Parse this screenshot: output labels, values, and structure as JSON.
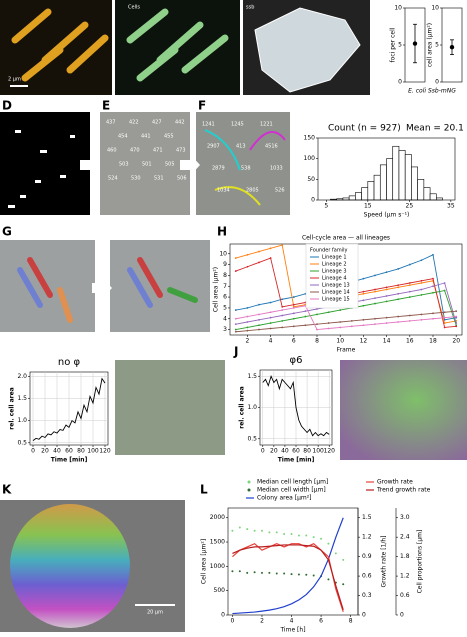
{
  "panel_letters": [
    "D",
    "E",
    "F",
    "G",
    "H",
    "J",
    "K",
    "L"
  ],
  "images": {
    "a_scale": "2 μm",
    "b_label": "Cells",
    "c_label": "ssb",
    "e_ids": [
      "437",
      "422",
      "427",
      "442",
      "454",
      "441",
      "455",
      "460",
      "470",
      "471",
      "473",
      "503",
      "501",
      "505",
      "524",
      "530",
      "531",
      "506"
    ],
    "f_ids": [
      "1241",
      "1245",
      "1221",
      "2907",
      "413",
      "4516",
      "2879",
      "538",
      "1033",
      "1034",
      "2805",
      "526"
    ],
    "k_scale": "20 μm"
  },
  "chart_data": [
    {
      "type": "errorbar",
      "ylabel": "foci per cell",
      "xlabel": "E. coli Ssb-mNG",
      "ylim": [
        0,
        10
      ],
      "yticks": [
        0,
        5,
        10
      ],
      "values": [
        5.2
      ],
      "errors": [
        2.6
      ],
      "color": "#000000"
    },
    {
      "type": "errorbar",
      "ylabel": "cell area (μm²)",
      "ylim": [
        0,
        10
      ],
      "yticks": [
        0,
        5,
        10
      ],
      "values": [
        4.7
      ],
      "errors": [
        1.0
      ],
      "color": "#000000"
    },
    {
      "type": "histogram",
      "title": "Count (n = 927)",
      "subtitle": "Mean = 20.1",
      "xlabel": "Speed (μm s⁻¹)",
      "bins": [
        6,
        7.5,
        9,
        10.5,
        12,
        13.5,
        15,
        16.5,
        18,
        19.5,
        21,
        22.5,
        24,
        25.5,
        27,
        28.5,
        30,
        31.5,
        33
      ],
      "values": [
        2,
        3,
        5,
        10,
        18,
        30,
        45,
        60,
        85,
        100,
        130,
        120,
        110,
        80,
        50,
        30,
        15,
        5
      ],
      "xlim": [
        3,
        36
      ],
      "xticks": [
        5,
        15,
        25,
        35
      ],
      "ylim": [
        0,
        150
      ],
      "yticks": [
        0,
        50,
        100,
        150
      ],
      "color": "#ffffff"
    },
    {
      "type": "line",
      "title": "Cell-cycle area — all lineages",
      "xlabel": "Frame",
      "ylabel": "Cell area (μm²)",
      "legend_title": "Founder family",
      "x": [
        1,
        2,
        3,
        4,
        5,
        6,
        7,
        8,
        9,
        10,
        11,
        12,
        13,
        14,
        15,
        16,
        17,
        18,
        19,
        20
      ],
      "xlim": [
        0.5,
        20.5
      ],
      "xticks": [
        2,
        4,
        6,
        8,
        10,
        12,
        14,
        16,
        18,
        20
      ],
      "ylim": [
        2.5,
        10.9
      ],
      "yticks": [
        3,
        4,
        5,
        6,
        7,
        8,
        9,
        10
      ],
      "grid": false,
      "markers": true,
      "series": [
        {
          "name": "Lineage 1",
          "color": "#1f77b4",
          "values": [
            4.8,
            5.0,
            5.3,
            5.5,
            5.8,
            6.0,
            6.3,
            6.6,
            6.9,
            7.2,
            7.4,
            7.7,
            8.0,
            8.3,
            8.6,
            9.0,
            9.4,
            9.9,
            3.9,
            4.1
          ]
        },
        {
          "name": "Lineage 2",
          "color": "#ff7f0e",
          "values": [
            9.6,
            9.9,
            10.2,
            10.5,
            10.8,
            5.1,
            5.3,
            5.5,
            5.7,
            5.9,
            6.1,
            6.3,
            6.5,
            6.7,
            6.9,
            7.1,
            7.3,
            7.5,
            3.6,
            3.8
          ]
        },
        {
          "name": "Lineage 3",
          "color": "#2ca02c",
          "values": [
            3.0,
            3.2,
            3.4,
            3.6,
            3.8,
            4.0,
            4.2,
            4.4,
            4.6,
            4.8,
            5.0,
            5.2,
            5.4,
            5.6,
            5.8,
            6.0,
            6.2,
            6.4,
            6.6,
            3.4
          ]
        },
        {
          "name": "Lineage 4",
          "color": "#d62728",
          "values": [
            8.4,
            8.8,
            9.2,
            9.6,
            5.1,
            5.3,
            5.5,
            5.7,
            5.9,
            6.1,
            6.3,
            6.5,
            6.7,
            6.9,
            7.1,
            7.3,
            7.5,
            7.7,
            3.2,
            3.3
          ]
        },
        {
          "name": "Lineage 13",
          "color": "#9467bd",
          "values": [
            3.5,
            3.7,
            3.9,
            4.1,
            4.3,
            4.5,
            4.7,
            4.9,
            5.1,
            5.3,
            5.5,
            5.7,
            5.9,
            6.1,
            6.3,
            6.5,
            6.7,
            7.0,
            7.3,
            3.6
          ]
        },
        {
          "name": "Lineage 14",
          "color": "#8c564b",
          "values": [
            2.8,
            2.9,
            3.0,
            3.1,
            3.2,
            3.3,
            3.4,
            3.5,
            3.6,
            3.7,
            3.8,
            3.9,
            4.0,
            4.1,
            4.2,
            4.3,
            4.4,
            4.5,
            4.6,
            4.7
          ]
        },
        {
          "name": "Lineage 15",
          "color": "#e377c2",
          "values": [
            4.0,
            4.2,
            4.4,
            4.6,
            4.8,
            5.0,
            5.2,
            3.0,
            3.1,
            3.2,
            3.3,
            3.4,
            3.5,
            3.6,
            3.7,
            3.8,
            3.9,
            4.0,
            4.1,
            4.2
          ]
        }
      ]
    },
    {
      "type": "line",
      "title": "no φ",
      "xlabel": "Time [min]",
      "ylabel": "rel. cell area",
      "grid": true,
      "x": [
        0,
        5,
        10,
        15,
        20,
        25,
        30,
        35,
        40,
        45,
        50,
        55,
        60,
        65,
        70,
        75,
        80,
        85,
        90,
        95,
        100,
        105,
        110,
        115,
        120
      ],
      "xlim": [
        -5,
        125
      ],
      "xticks": [
        0,
        20,
        40,
        60,
        80,
        100,
        120
      ],
      "ylim": [
        0.45,
        2.1
      ],
      "yticks": [
        0.5,
        {
          "value": 1,
          "label": "1.0"
        },
        1.5,
        {
          "value": 2,
          "label": "2.0"
        }
      ],
      "series": [
        {
          "color": "#000000",
          "values": [
            0.55,
            0.6,
            0.58,
            0.65,
            0.62,
            0.7,
            0.68,
            0.75,
            0.72,
            0.8,
            0.78,
            0.9,
            0.85,
            1.0,
            0.95,
            1.2,
            1.05,
            1.35,
            1.2,
            1.55,
            1.4,
            1.75,
            1.6,
            1.95,
            1.85
          ]
        }
      ]
    },
    {
      "type": "line",
      "title": "φ6",
      "xlabel": "Time [min]",
      "ylabel": "rel. cell area",
      "grid": true,
      "x": [
        0,
        5,
        10,
        15,
        20,
        25,
        30,
        35,
        40,
        45,
        50,
        55,
        60,
        65,
        70,
        75,
        80,
        85,
        90,
        95,
        100,
        105,
        110,
        115,
        120
      ],
      "xlim": [
        -5,
        125
      ],
      "xticks": [
        0,
        20,
        40,
        60,
        80,
        100,
        120
      ],
      "ylim": [
        0.4,
        1.6
      ],
      "yticks": [
        0.5,
        {
          "value": 1,
          "label": "1.0"
        },
        1.5
      ],
      "series": [
        {
          "color": "#000000",
          "values": [
            1.4,
            1.45,
            1.35,
            1.5,
            1.4,
            1.45,
            1.3,
            1.45,
            1.4,
            1.35,
            1.3,
            1.4,
            1.0,
            0.8,
            0.7,
            0.65,
            0.6,
            0.65,
            0.55,
            0.6,
            0.55,
            0.58,
            0.55,
            0.6,
            0.57
          ]
        }
      ]
    },
    {
      "type": "multiaxis",
      "xlabel": "Time [h]",
      "ylabel": "Cell area [μm²]",
      "y2label": "Growth rate [1/h]",
      "y3label": "Cell proportions [μm]",
      "x": [
        0,
        0.5,
        1,
        1.5,
        2,
        2.5,
        3,
        3.5,
        4,
        4.5,
        5,
        5.5,
        6,
        6.5,
        7,
        7.5
      ],
      "xlim": [
        -0.3,
        8.5
      ],
      "xticks": [
        0,
        2,
        4,
        6,
        8
      ],
      "ylim": [
        0,
        2200
      ],
      "yticks": [
        0,
        500,
        1000,
        1500,
        2000
      ],
      "y2lim": [
        0,
        1.65
      ],
      "y2ticks": [
        0,
        0.3,
        0.6,
        0.9,
        1.2,
        1.5
      ],
      "y3lim": [
        0,
        3.3
      ],
      "y3ticks": [
        0,
        0.6,
        1.2,
        1.8,
        2.4,
        {
          "value": 3,
          "label": "3.0"
        }
      ],
      "series": [
        {
          "name": "Median cell length [μm]",
          "color": "#7fd37f",
          "style": "scatter",
          "axis": "y3",
          "values": [
            2.6,
            2.7,
            2.65,
            2.6,
            2.6,
            2.55,
            2.55,
            2.5,
            2.5,
            2.45,
            2.45,
            2.4,
            2.35,
            2.2,
            1.9,
            1.7
          ]
        },
        {
          "name": "Median cell width [μm]",
          "color": "#2e6b2e",
          "style": "scatter",
          "axis": "y3",
          "values": [
            1.35,
            1.35,
            1.3,
            1.32,
            1.3,
            1.3,
            1.28,
            1.28,
            1.26,
            1.25,
            1.24,
            1.22,
            1.2,
            1.1,
            1.0,
            0.95
          ]
        },
        {
          "name": "Colony area [μm²]",
          "color": "#1f3fcf",
          "style": "line",
          "values": [
            30,
            40,
            50,
            60,
            80,
            100,
            130,
            170,
            230,
            310,
            420,
            580,
            800,
            1150,
            1600,
            2000
          ]
        },
        {
          "name": "Growth rate",
          "color": "#e8413a",
          "style": "line",
          "axis": "y2",
          "values": [
            0.9,
            1.0,
            1.05,
            1.1,
            1.0,
            1.05,
            1.1,
            1.05,
            1.1,
            1.1,
            1.05,
            1.1,
            1.0,
            0.9,
            0.4,
            0.05
          ]
        },
        {
          "name": "Trend growth rate",
          "color": "#b81d1d",
          "style": "line",
          "axis": "y2",
          "values": [
            0.95,
            1.0,
            1.03,
            1.05,
            1.05,
            1.06,
            1.07,
            1.08,
            1.08,
            1.08,
            1.07,
            1.06,
            1.0,
            0.85,
            0.45,
            0.08
          ]
        }
      ]
    }
  ]
}
